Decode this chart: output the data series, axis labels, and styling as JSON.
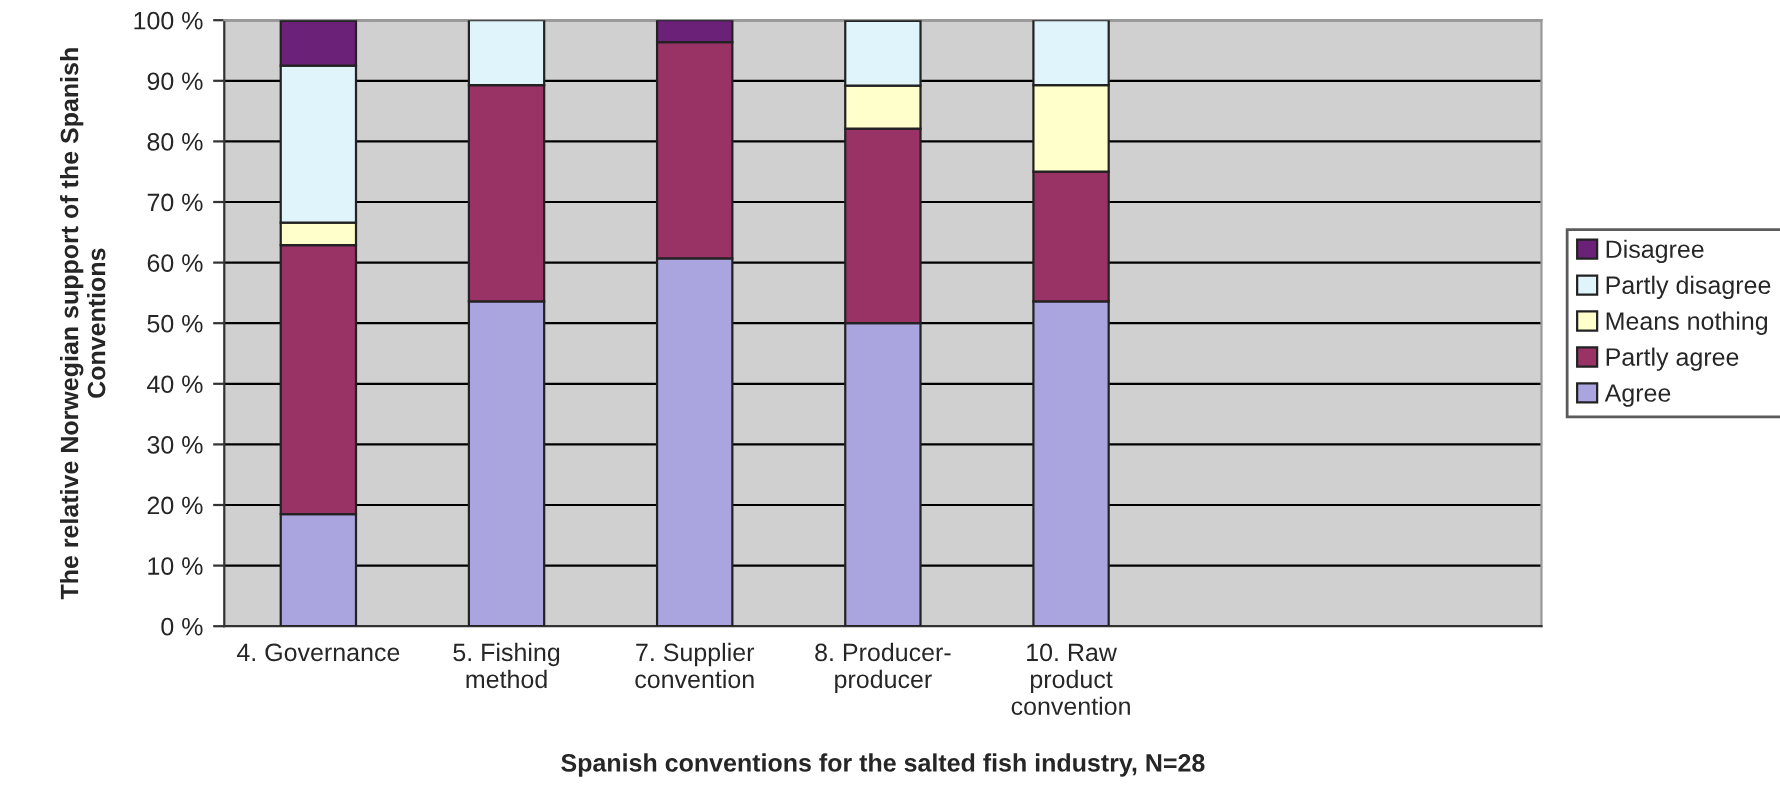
{
  "chart_data": {
    "type": "bar",
    "stacked": true,
    "xlabel": "Spanish conventions for the salted fish industry, N=28",
    "ylabel": "The relative Norwegian support of the Spanish\nConventions",
    "categories": [
      "4. Governance",
      "5. Fishing\nmethod",
      "7. Supplier\nconvention",
      "8. Producer-\nproducer",
      "10. Raw\nproduct\nconvention",
      null,
      null
    ],
    "series": [
      {
        "name": "Agree",
        "color": "#aaa5df",
        "values": [
          18.5,
          53.6,
          60.7,
          50.0,
          53.6,
          null,
          null
        ]
      },
      {
        "name": "Partly agree",
        "color": "#993366",
        "values": [
          44.4,
          35.7,
          35.7,
          32.1,
          21.4,
          null,
          null
        ]
      },
      {
        "name": "Means nothing",
        "color": "#ffffcc",
        "values": [
          3.7,
          0,
          0,
          7.1,
          14.3,
          null,
          null
        ]
      },
      {
        "name": "Partly disagree",
        "color": "#e0f4fc",
        "values": [
          25.9,
          10.7,
          0,
          10.7,
          10.7,
          null,
          null
        ]
      },
      {
        "name": "Disagree",
        "color": "#6b2178",
        "values": [
          7.4,
          0,
          3.6,
          0,
          0,
          null,
          null
        ]
      }
    ],
    "ylim": [
      0,
      100
    ],
    "yticks": [
      {
        "value": 0,
        "label": "0 %"
      },
      {
        "value": 10,
        "label": "10 %"
      },
      {
        "value": 20,
        "label": "20 %"
      },
      {
        "value": 30,
        "label": "30 %"
      },
      {
        "value": 40,
        "label": "40 %"
      },
      {
        "value": 50,
        "label": "50 %"
      },
      {
        "value": 60,
        "label": "60 %"
      },
      {
        "value": 70,
        "label": "70 %"
      },
      {
        "value": 80,
        "label": "80 %"
      },
      {
        "value": 90,
        "label": "90 %"
      },
      {
        "value": 100,
        "label": "100 %"
      }
    ],
    "grid": "y",
    "legend": "right"
  }
}
